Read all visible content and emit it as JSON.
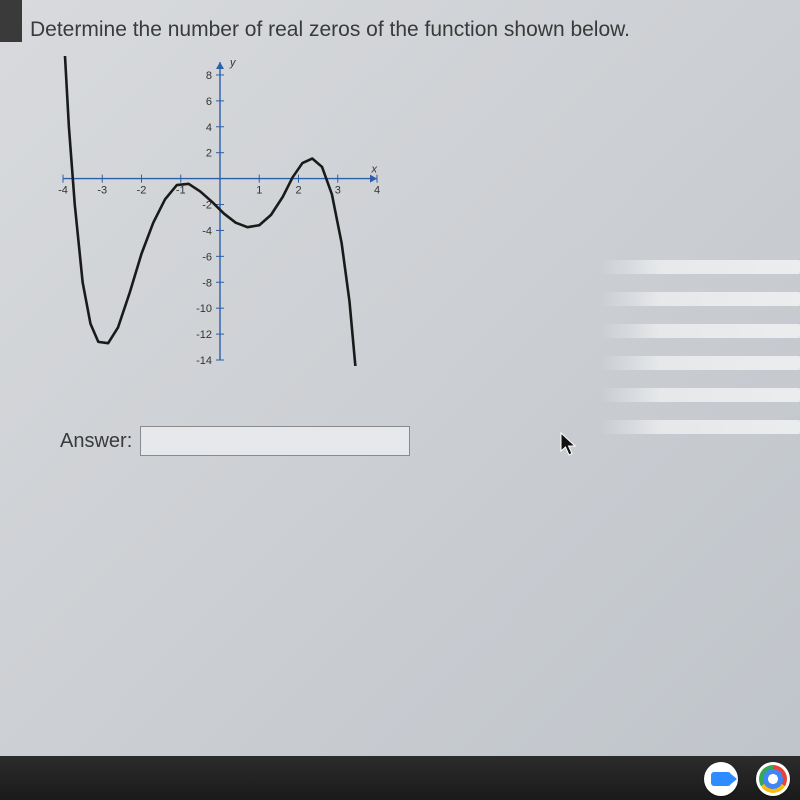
{
  "question": "Determine the number of real zeros of the function shown below.",
  "answer_label": "Answer:",
  "answer_value": "",
  "chart": {
    "type": "line",
    "x_axis_label": "x",
    "y_axis_label": "y",
    "xlim": [
      -4,
      4
    ],
    "ylim": [
      -14,
      9
    ],
    "x_ticks": [
      -4,
      -3,
      -2,
      -1,
      1,
      2,
      3,
      4
    ],
    "y_ticks_pos": [
      2,
      4,
      6,
      8
    ],
    "y_ticks_neg": [
      -2,
      -4,
      -6,
      -8,
      -10,
      -12,
      -14
    ],
    "axis_color": "#2b5fa8",
    "tick_color": "#2b5fa8",
    "tick_label_color": "#333333",
    "curve_color": "#1a1a1a",
    "curve_width": 2.6,
    "background": "transparent",
    "tick_fontsize": 11,
    "axis_label_fontsize": 11,
    "curve_points": [
      [
        -3.95,
        9.5
      ],
      [
        -3.85,
        4.0
      ],
      [
        -3.7,
        -2.0
      ],
      [
        -3.5,
        -8.0
      ],
      [
        -3.3,
        -11.2
      ],
      [
        -3.1,
        -12.6
      ],
      [
        -2.85,
        -12.7
      ],
      [
        -2.6,
        -11.5
      ],
      [
        -2.3,
        -8.8
      ],
      [
        -2.0,
        -5.8
      ],
      [
        -1.7,
        -3.4
      ],
      [
        -1.4,
        -1.6
      ],
      [
        -1.1,
        -0.5
      ],
      [
        -0.8,
        -0.4
      ],
      [
        -0.5,
        -1.0
      ],
      [
        -0.2,
        -1.8
      ],
      [
        0.1,
        -2.7
      ],
      [
        0.4,
        -3.4
      ],
      [
        0.7,
        -3.75
      ],
      [
        1.0,
        -3.6
      ],
      [
        1.3,
        -2.8
      ],
      [
        1.6,
        -1.4
      ],
      [
        1.85,
        0.1
      ],
      [
        2.1,
        1.2
      ],
      [
        2.35,
        1.55
      ],
      [
        2.6,
        0.9
      ],
      [
        2.85,
        -1.2
      ],
      [
        3.1,
        -5.0
      ],
      [
        3.3,
        -9.5
      ],
      [
        3.45,
        -14.5
      ]
    ]
  },
  "taskbar": {
    "icons": [
      "zoom-icon",
      "chrome-icon"
    ]
  }
}
